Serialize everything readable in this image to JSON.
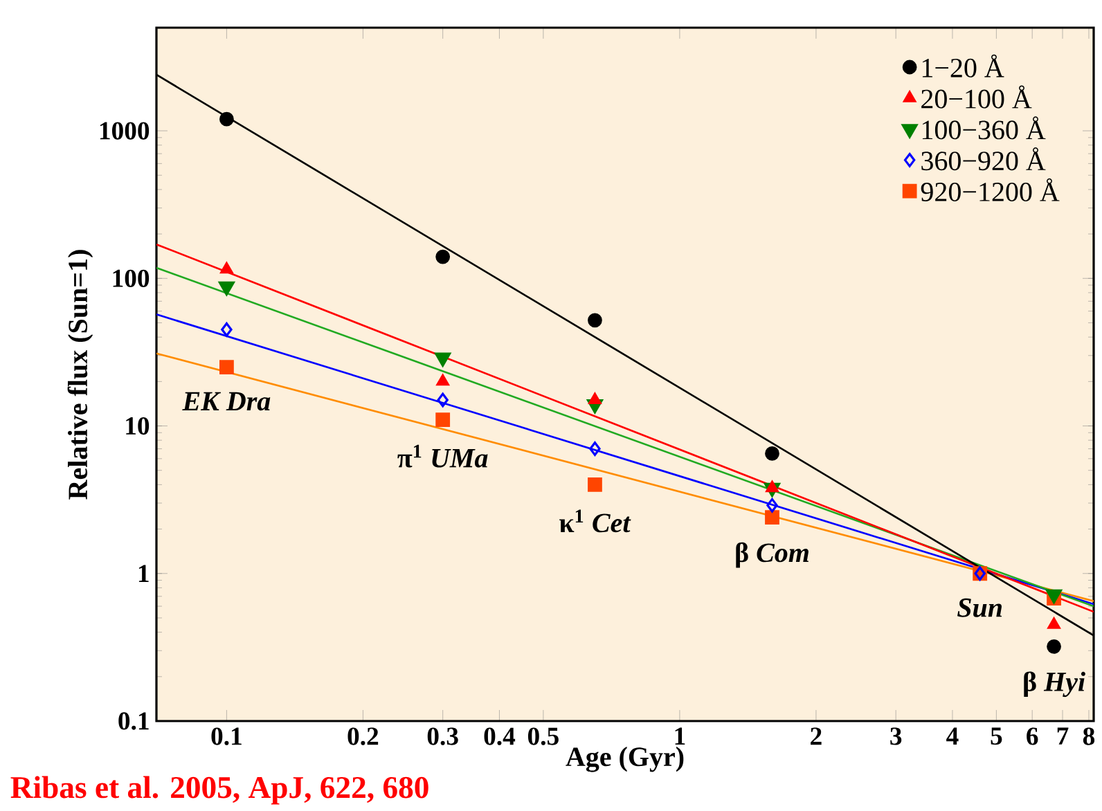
{
  "chart_data": {
    "type": "scatter",
    "xlabel": "Age (Gyr)",
    "ylabel": "Relative flux (Sun=1)",
    "log": "xy",
    "legend": "top right",
    "xlim": [
      0.07,
      8.2
    ],
    "ylim": [
      0.1,
      5000
    ],
    "xticks": [
      0.1,
      0.2,
      0.3,
      0.4,
      0.5,
      1,
      2,
      3,
      4,
      5,
      6,
      7,
      8
    ],
    "yticks": [
      0.1,
      1,
      10,
      100,
      1000
    ],
    "series": [
      {
        "name": "1−20 Å",
        "color": "#000000",
        "marker": "circle",
        "x": [
          0.1,
          0.3,
          0.65,
          1.6,
          4.6,
          6.7
        ],
        "values": [
          1200,
          140,
          52,
          6.5,
          null,
          0.32
        ]
      },
      {
        "name": "20−100 Å",
        "color": "#ff0000",
        "marker": "triangle",
        "x": [
          0.1,
          0.3,
          0.65,
          1.6,
          4.6,
          6.7
        ],
        "values": [
          115,
          20,
          15,
          3.8,
          null,
          0.45
        ]
      },
      {
        "name": "100−360 Å",
        "color": "#008000",
        "marker": "triangle down",
        "x": [
          0.1,
          0.3,
          0.65,
          1.6,
          4.6,
          6.7
        ],
        "values": [
          88,
          29,
          14,
          3.8,
          null,
          0.72
        ]
      },
      {
        "name": "360−920 Å",
        "color": "#0000ff",
        "marker": "diamond",
        "x": [
          0.1,
          0.3,
          0.65,
          1.6,
          4.6
        ],
        "values": [
          45,
          15,
          7,
          2.9,
          1
        ]
      },
      {
        "name": "920−1200 Å",
        "color": "#ff4500",
        "marker": "square",
        "x": [
          0.1,
          0.3,
          0.65,
          1.6,
          4.6,
          6.7
        ],
        "values": [
          25,
          11,
          4,
          2.4,
          1,
          0.68
        ]
      },
      {
        "type": "line",
        "color": "#000000",
        "marker": "none",
        "x": [
          0.07,
          8.2
        ],
        "values": [
          2400,
          0.38
        ]
      },
      {
        "type": "line",
        "color": "#ff0000",
        "marker": "none",
        "x": [
          0.07,
          8.2
        ],
        "values": [
          170,
          0.55
        ]
      },
      {
        "type": "line",
        "color": "#22aa22",
        "marker": "none",
        "x": [
          0.07,
          8.2
        ],
        "values": [
          118,
          0.6
        ]
      },
      {
        "type": "line",
        "color": "#0000ff",
        "marker": "none",
        "x": [
          0.07,
          8.2
        ],
        "values": [
          57,
          0.62
        ]
      },
      {
        "type": "line",
        "color": "#ff8c00",
        "marker": "none",
        "x": [
          0.07,
          8.2
        ],
        "values": [
          31,
          0.65
        ]
      }
    ],
    "annotations": [
      {
        "text": "*EK Dra*",
        "x": 0.1,
        "y": 25
      },
      {
        "text": "π$^{1}$ *UMa*",
        "x": 0.3,
        "y": 11
      },
      {
        "text": "κ$^{1}$ *Cet*",
        "x": 0.65,
        "y": 4
      },
      {
        "text": "β *Com*",
        "x": 1.6,
        "y": 2.4
      },
      {
        "text": "*Sun*",
        "x": 4.6,
        "y": 1
      },
      {
        "text": "β *Hyi*",
        "x": 6.7,
        "y": 0.32
      },
      "Ribas et al. 2005, ApJ, 622, 680"
    ]
  }
}
